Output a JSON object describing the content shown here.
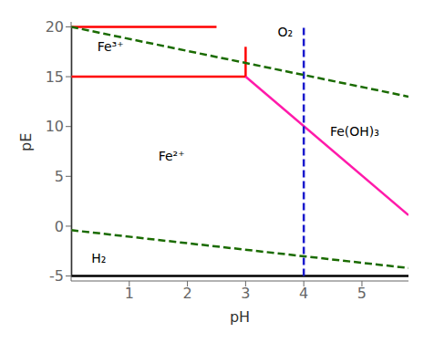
{
  "chart_data": {
    "type": "line",
    "xlabel": "pH",
    "ylabel": "pE",
    "xlim": [
      0,
      5.8
    ],
    "ylim": [
      -5.5,
      20.5
    ],
    "xticks": [
      1,
      2,
      3,
      4,
      5
    ],
    "yticks": [
      -5,
      0,
      5,
      10,
      15,
      20
    ],
    "series": [
      {
        "x": [
          0,
          0
        ],
        "values": [
          -5,
          20
        ],
        "color": "#000000",
        "line_style": "solid"
      },
      {
        "x": [
          0,
          5.8
        ],
        "values": [
          -5,
          -5
        ],
        "color": "#000000",
        "line_style": "solid"
      },
      {
        "x": [
          0,
          3
        ],
        "values": [
          15,
          15
        ],
        "color": "#ff0000",
        "line_style": "solid"
      },
      {
        "x": [
          3,
          3
        ],
        "values": [
          15,
          18
        ],
        "color": "#ff0000",
        "line_style": "solid"
      },
      {
        "x": [
          0,
          2.5
        ],
        "values": [
          20,
          20
        ],
        "color": "#ff0000",
        "line_style": "solid"
      },
      {
        "x": [
          3,
          5.8
        ],
        "values": [
          15,
          1.1
        ],
        "color": "#ff1aaa",
        "line_style": "solid"
      },
      {
        "x": [
          4,
          4
        ],
        "values": [
          -5,
          20
        ],
        "color": "#1a1acd",
        "line_style": "dashed"
      },
      {
        "x": [
          0,
          5.8
        ],
        "values": [
          20,
          13
        ],
        "color": "#1a6b00",
        "line_style": "dashed"
      },
      {
        "x": [
          0,
          5.8
        ],
        "values": [
          -0.4,
          -4.2
        ],
        "color": "#1a6b00",
        "line_style": "dashed"
      }
    ],
    "annotations": [
      {
        "x": 0.45,
        "y": 18.0,
        "text": "Fe³⁺"
      },
      {
        "x": 1.5,
        "y": 7.0,
        "text": "Fe²⁺"
      },
      {
        "x": 4.45,
        "y": 9.5,
        "text": "Fe(OH)₃"
      },
      {
        "x": 3.55,
        "y": 19.5,
        "text": "O₂"
      },
      {
        "x": 0.35,
        "y": -3.2,
        "text": "H₂"
      }
    ]
  }
}
